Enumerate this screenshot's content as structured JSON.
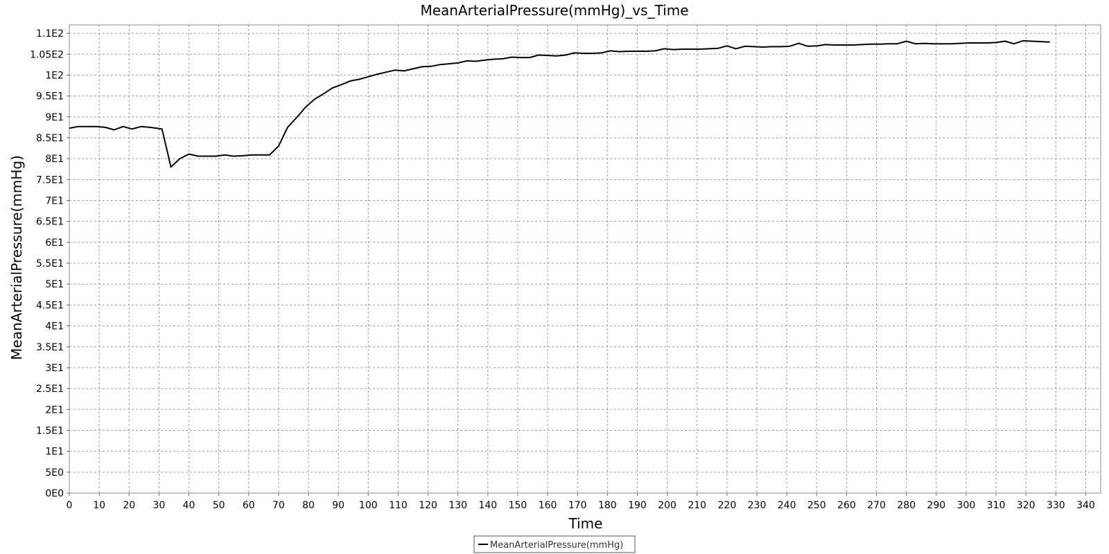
{
  "chart_data": {
    "type": "line",
    "title": "MeanArterialPressure(mmHg)_vs_Time",
    "xlabel": "Time",
    "ylabel": "MeanArterialPressure(mmHg)",
    "xlim": [
      0,
      345
    ],
    "ylim": [
      0,
      112
    ],
    "grid": true,
    "legend_position": "bottom-center",
    "x_ticks": [
      0,
      10,
      20,
      30,
      40,
      50,
      60,
      70,
      80,
      90,
      100,
      110,
      120,
      130,
      140,
      150,
      160,
      170,
      180,
      190,
      200,
      210,
      220,
      230,
      240,
      250,
      260,
      270,
      280,
      290,
      300,
      310,
      320,
      330,
      340
    ],
    "x_tick_labels": [
      "0",
      "10",
      "20",
      "30",
      "40",
      "50",
      "60",
      "70",
      "80",
      "90",
      "100",
      "110",
      "120",
      "130",
      "140",
      "150",
      "160",
      "170",
      "180",
      "190",
      "200",
      "210",
      "220",
      "230",
      "240",
      "250",
      "260",
      "270",
      "280",
      "290",
      "300",
      "310",
      "320",
      "330",
      "340"
    ],
    "y_ticks": [
      0,
      5,
      10,
      15,
      20,
      25,
      30,
      35,
      40,
      45,
      50,
      55,
      60,
      65,
      70,
      75,
      80,
      85,
      90,
      95,
      100,
      105,
      110
    ],
    "y_tick_labels": [
      "0E0",
      "5E0",
      "1E1",
      "1.5E1",
      "2E1",
      "2.5E1",
      "3E1",
      "3.5E1",
      "4E1",
      "4.5E1",
      "5E1",
      "5.5E1",
      "6E1",
      "6.5E1",
      "7E1",
      "7.5E1",
      "8E1",
      "8.5E1",
      "9E1",
      "9.5E1",
      "1E2",
      "1.05E2",
      "1.1E2"
    ],
    "series": [
      {
        "name": "MeanArterialPressure(mmHg)",
        "color": "#000000",
        "x": [
          0,
          3,
          6,
          9,
          12,
          15,
          18,
          21,
          24,
          27,
          31,
          34,
          37,
          40,
          43,
          46,
          49,
          52,
          55,
          58,
          61,
          64,
          67,
          70,
          73,
          76,
          79,
          82,
          85,
          88,
          91,
          94,
          97,
          100,
          103,
          106,
          109,
          112,
          115,
          118,
          121,
          124,
          127,
          130,
          133,
          136,
          139,
          142,
          145,
          148,
          151,
          154,
          157,
          160,
          163,
          166,
          169,
          172,
          175,
          178,
          181,
          184,
          187,
          190,
          193,
          196,
          199,
          202,
          205,
          208,
          211,
          214,
          217,
          220,
          223,
          226,
          229,
          232,
          235,
          238,
          241,
          244,
          247,
          250,
          253,
          256,
          259,
          262,
          265,
          268,
          271,
          274,
          277,
          280,
          283,
          286,
          289,
          292,
          295,
          298,
          301,
          304,
          307,
          310,
          313,
          316,
          319,
          322,
          325,
          328
        ],
        "y": [
          87.3,
          87.7,
          87.7,
          87.7,
          87.5,
          86.9,
          87.7,
          87.1,
          87.7,
          87.5,
          87.1,
          78.0,
          80.0,
          81.1,
          80.6,
          80.6,
          80.6,
          80.9,
          80.6,
          80.7,
          80.9,
          80.9,
          80.9,
          83.0,
          87.5,
          89.8,
          92.3,
          94.2,
          95.5,
          96.9,
          97.7,
          98.6,
          99.0,
          99.6,
          100.2,
          100.7,
          101.2,
          101.0,
          101.5,
          102.0,
          102.1,
          102.5,
          102.7,
          102.9,
          103.4,
          103.3,
          103.6,
          103.8,
          103.9,
          104.3,
          104.2,
          104.2,
          104.8,
          104.7,
          104.6,
          104.8,
          105.3,
          105.2,
          105.2,
          105.3,
          105.8,
          105.6,
          105.7,
          105.7,
          105.7,
          105.8,
          106.3,
          106.1,
          106.2,
          106.2,
          106.2,
          106.3,
          106.4,
          107.0,
          106.3,
          106.9,
          106.8,
          106.7,
          106.8,
          106.8,
          106.9,
          107.6,
          106.9,
          107.0,
          107.3,
          107.2,
          107.2,
          107.2,
          107.3,
          107.4,
          107.4,
          107.5,
          107.5,
          108.1,
          107.5,
          107.6,
          107.5,
          107.5,
          107.5,
          107.6,
          107.7,
          107.7,
          107.7,
          107.8,
          108.1,
          107.5,
          108.2,
          108.1,
          108.0,
          107.9
        ]
      }
    ]
  }
}
